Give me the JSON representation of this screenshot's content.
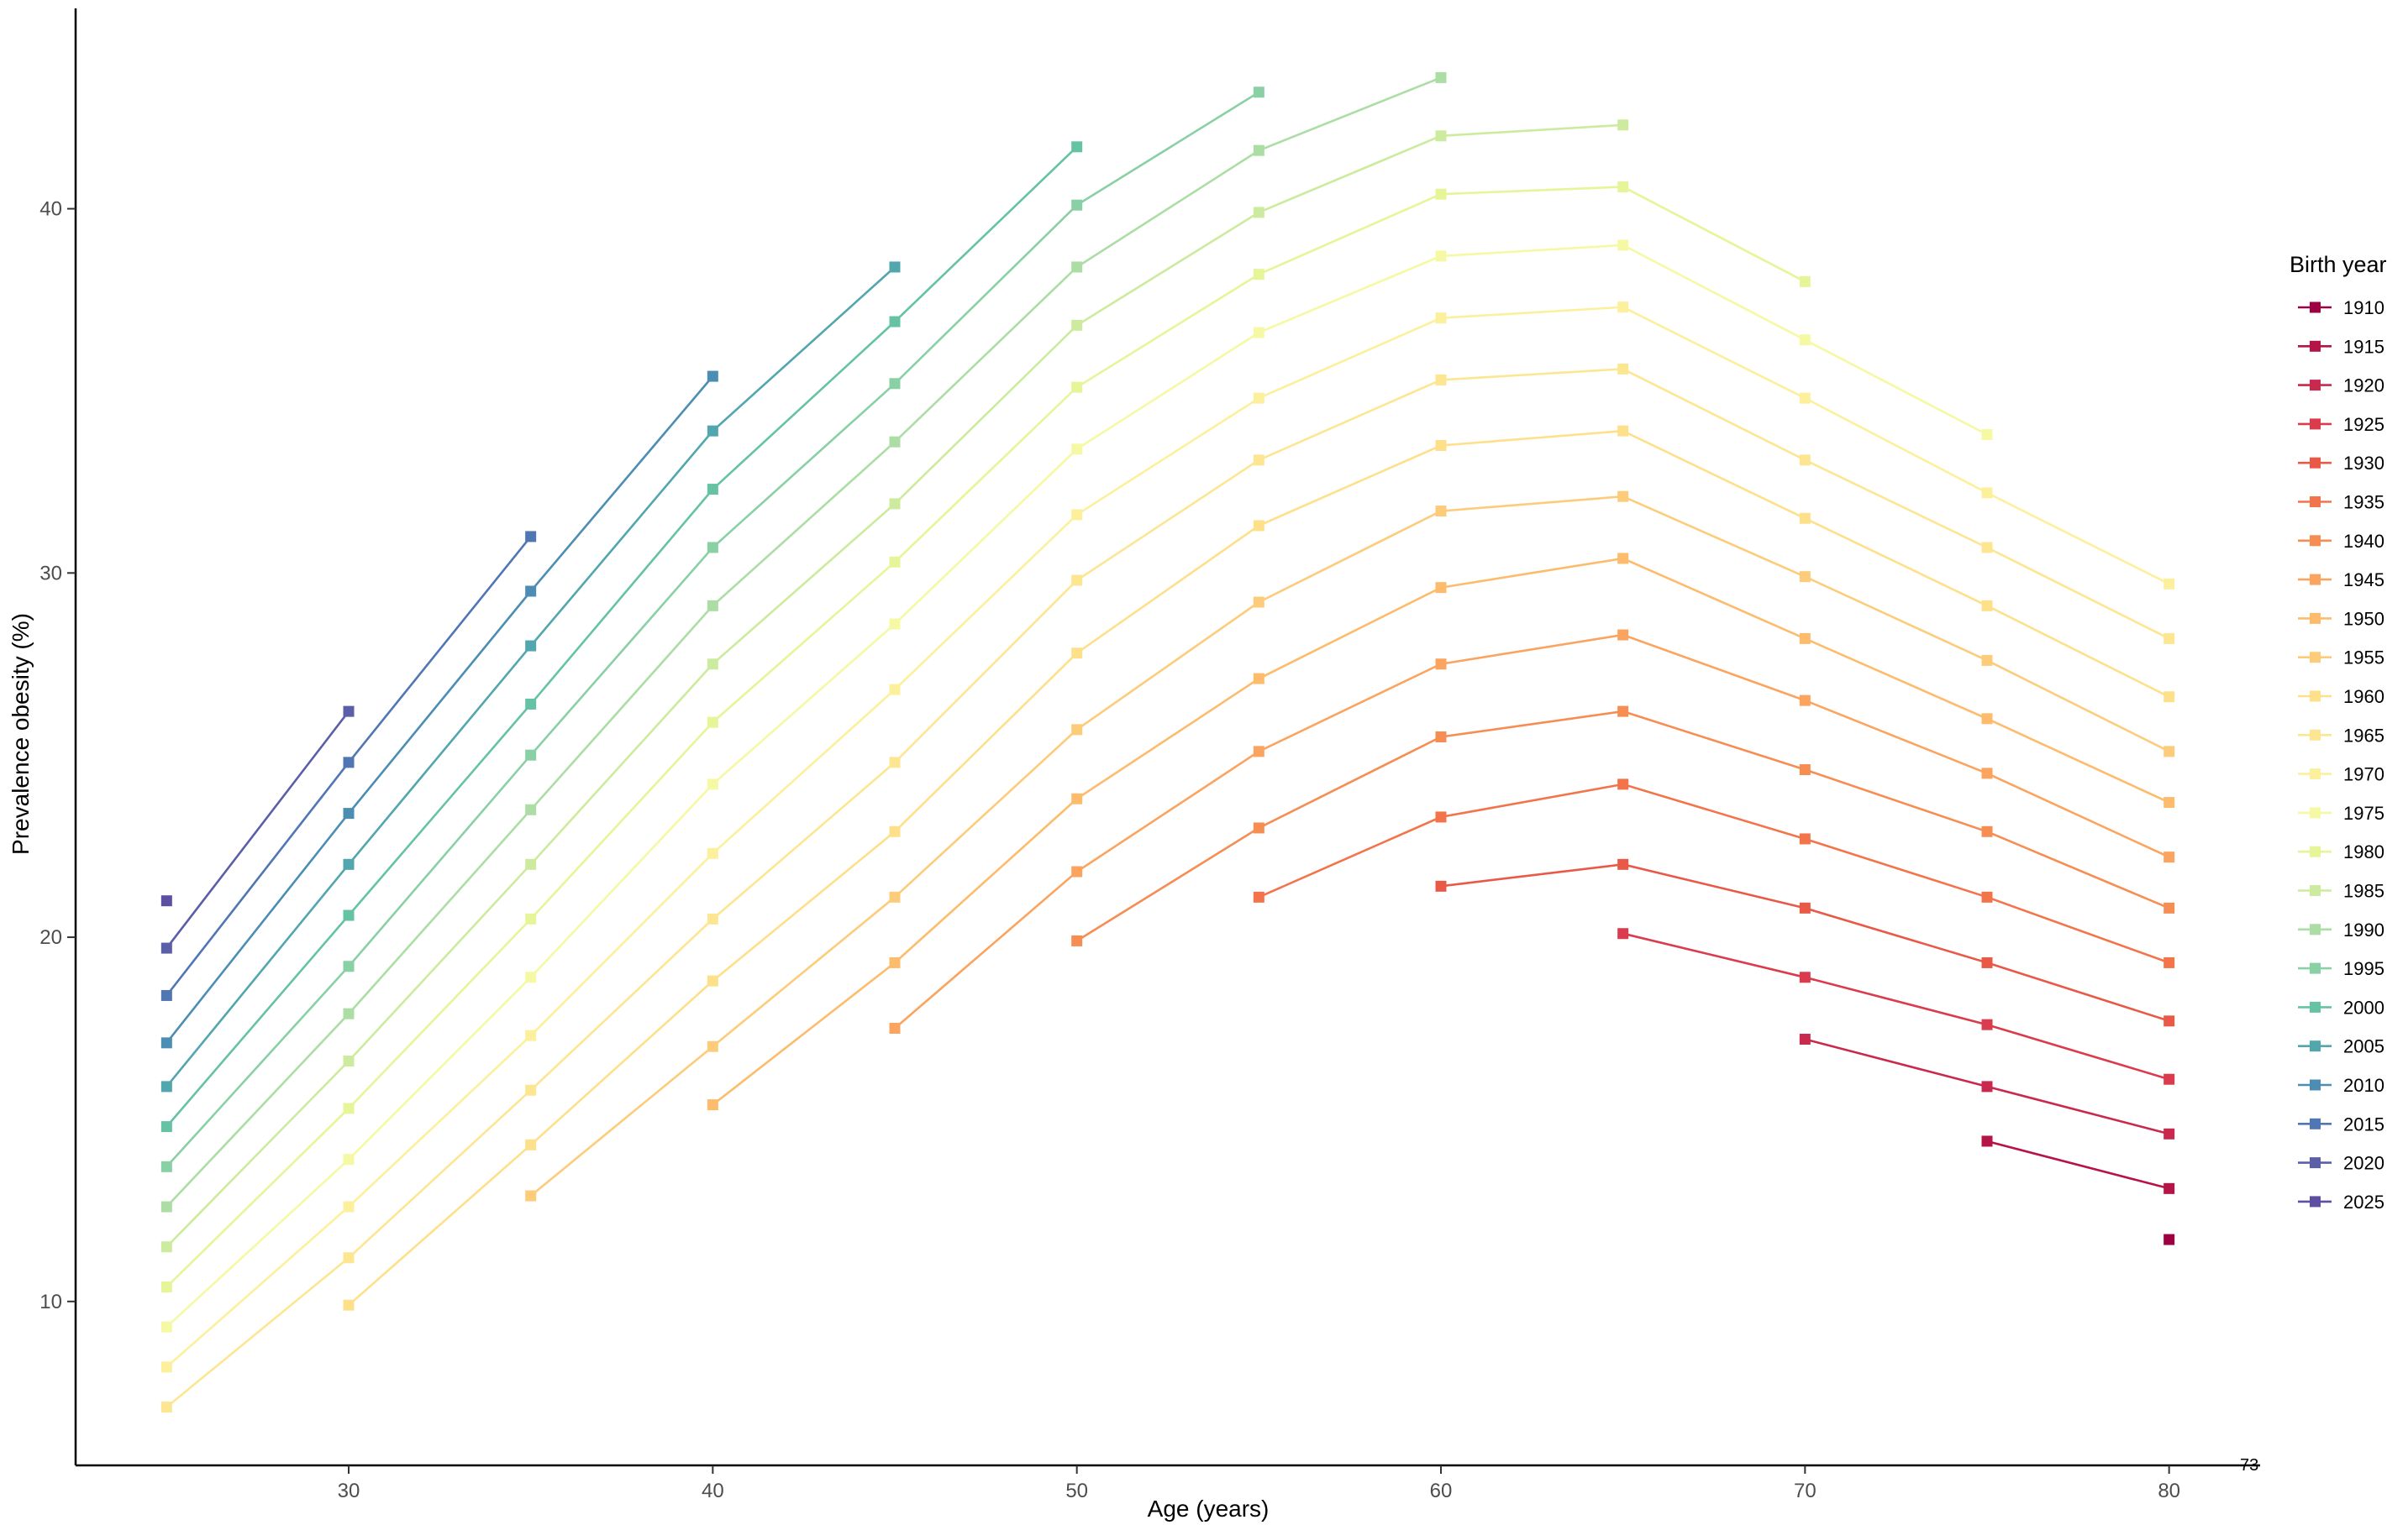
{
  "chart_data": {
    "type": "line",
    "title": "",
    "xlabel": "Age (years)",
    "ylabel": "Prevalence obesity (%)",
    "xlim": [
      22.5,
      82.5
    ],
    "ylim": [
      5.5,
      45.5
    ],
    "x_ticks": [
      30,
      40,
      50,
      60,
      70,
      80
    ],
    "y_ticks": [
      10,
      20,
      30,
      40
    ],
    "grid": false,
    "legend_title": "Birth year",
    "legend_position": "right",
    "corner_note": "73",
    "series": [
      {
        "name": "1910",
        "color": "#9e0142",
        "points": [
          [
            80,
            11.7
          ]
        ]
      },
      {
        "name": "1915",
        "color": "#b41546",
        "points": [
          [
            75,
            14.4
          ],
          [
            80,
            13.1
          ]
        ]
      },
      {
        "name": "1920",
        "color": "#c9294c",
        "points": [
          [
            70,
            17.2
          ],
          [
            75,
            15.9
          ],
          [
            80,
            14.6
          ]
        ]
      },
      {
        "name": "1925",
        "color": "#da3c4d",
        "points": [
          [
            65,
            20.1
          ],
          [
            70,
            18.9
          ],
          [
            75,
            17.6
          ],
          [
            80,
            16.1
          ]
        ]
      },
      {
        "name": "1930",
        "color": "#e85a47",
        "points": [
          [
            60,
            21.4
          ],
          [
            65,
            22.0
          ],
          [
            70,
            20.8
          ],
          [
            75,
            19.3
          ],
          [
            80,
            17.7
          ]
        ]
      },
      {
        "name": "1935",
        "color": "#f3744b",
        "points": [
          [
            55,
            21.1
          ],
          [
            60,
            23.3
          ],
          [
            65,
            24.2
          ],
          [
            70,
            22.7
          ],
          [
            75,
            21.1
          ],
          [
            80,
            19.3
          ]
        ]
      },
      {
        "name": "1940",
        "color": "#f68d53",
        "points": [
          [
            50,
            19.9
          ],
          [
            55,
            23.0
          ],
          [
            60,
            25.5
          ],
          [
            65,
            26.2
          ],
          [
            70,
            24.6
          ],
          [
            75,
            22.9
          ],
          [
            80,
            20.8
          ]
        ]
      },
      {
        "name": "1945",
        "color": "#fba45f",
        "points": [
          [
            45,
            17.5
          ],
          [
            50,
            21.8
          ],
          [
            55,
            25.1
          ],
          [
            60,
            27.5
          ],
          [
            65,
            28.3
          ],
          [
            70,
            26.5
          ],
          [
            75,
            24.5
          ],
          [
            80,
            22.2
          ]
        ]
      },
      {
        "name": "1950",
        "color": "#fdbb6c",
        "points": [
          [
            40,
            15.4
          ],
          [
            45,
            19.3
          ],
          [
            50,
            23.8
          ],
          [
            55,
            27.1
          ],
          [
            60,
            29.6
          ],
          [
            65,
            30.4
          ],
          [
            70,
            28.2
          ],
          [
            75,
            26.0
          ],
          [
            80,
            23.7
          ]
        ]
      },
      {
        "name": "1955",
        "color": "#fdcc7a",
        "points": [
          [
            35,
            12.9
          ],
          [
            40,
            17.0
          ],
          [
            45,
            21.1
          ],
          [
            50,
            25.7
          ],
          [
            55,
            29.2
          ],
          [
            60,
            31.7
          ],
          [
            65,
            32.1
          ],
          [
            70,
            29.9
          ],
          [
            75,
            27.6
          ],
          [
            80,
            25.1
          ]
        ]
      },
      {
        "name": "1960",
        "color": "#fee08b",
        "points": [
          [
            30,
            9.9
          ],
          [
            35,
            14.3
          ],
          [
            40,
            18.8
          ],
          [
            45,
            22.9
          ],
          [
            50,
            27.8
          ],
          [
            55,
            31.3
          ],
          [
            60,
            33.5
          ],
          [
            65,
            33.9
          ],
          [
            70,
            31.5
          ],
          [
            75,
            29.1
          ],
          [
            80,
            26.6
          ]
        ]
      },
      {
        "name": "1965",
        "color": "#fde692",
        "points": [
          [
            25,
            7.1
          ],
          [
            30,
            11.2
          ],
          [
            35,
            15.8
          ],
          [
            40,
            20.5
          ],
          [
            45,
            24.8
          ],
          [
            50,
            29.8
          ],
          [
            55,
            33.1
          ],
          [
            60,
            35.3
          ],
          [
            65,
            35.6
          ],
          [
            70,
            33.1
          ],
          [
            75,
            30.7
          ],
          [
            80,
            28.2
          ]
        ]
      },
      {
        "name": "1970",
        "color": "#fcf09c",
        "points": [
          [
            25,
            8.2
          ],
          [
            30,
            12.6
          ],
          [
            35,
            17.3
          ],
          [
            40,
            22.3
          ],
          [
            45,
            26.8
          ],
          [
            50,
            31.6
          ],
          [
            55,
            34.8
          ],
          [
            60,
            37.0
          ],
          [
            65,
            37.3
          ],
          [
            70,
            34.8
          ],
          [
            75,
            32.2
          ],
          [
            80,
            29.7
          ]
        ]
      },
      {
        "name": "1975",
        "color": "#f5f9a4",
        "points": [
          [
            25,
            9.3
          ],
          [
            30,
            13.9
          ],
          [
            35,
            18.9
          ],
          [
            40,
            24.2
          ],
          [
            45,
            28.6
          ],
          [
            50,
            33.4
          ],
          [
            55,
            36.6
          ],
          [
            60,
            38.7
          ],
          [
            65,
            39.0
          ],
          [
            70,
            36.4
          ],
          [
            75,
            33.8
          ]
        ]
      },
      {
        "name": "1980",
        "color": "#e6f598",
        "points": [
          [
            25,
            10.4
          ],
          [
            30,
            15.3
          ],
          [
            35,
            20.5
          ],
          [
            40,
            25.9
          ],
          [
            45,
            30.3
          ],
          [
            50,
            35.1
          ],
          [
            55,
            38.2
          ],
          [
            60,
            40.4
          ],
          [
            65,
            40.6
          ],
          [
            70,
            38.0
          ]
        ]
      },
      {
        "name": "1985",
        "color": "#cdeb9e",
        "points": [
          [
            25,
            11.5
          ],
          [
            30,
            16.6
          ],
          [
            35,
            22.0
          ],
          [
            40,
            27.5
          ],
          [
            45,
            31.9
          ],
          [
            50,
            36.8
          ],
          [
            55,
            39.9
          ],
          [
            60,
            42.0
          ],
          [
            65,
            42.3
          ]
        ]
      },
      {
        "name": "1990",
        "color": "#abdda4",
        "points": [
          [
            25,
            12.6
          ],
          [
            30,
            17.9
          ],
          [
            35,
            23.5
          ],
          [
            40,
            29.1
          ],
          [
            45,
            33.6
          ],
          [
            50,
            38.4
          ],
          [
            55,
            41.6
          ],
          [
            60,
            43.6
          ]
        ]
      },
      {
        "name": "1995",
        "color": "#89d0a4",
        "points": [
          [
            25,
            13.7
          ],
          [
            30,
            19.2
          ],
          [
            35,
            25.0
          ],
          [
            40,
            30.7
          ],
          [
            45,
            35.2
          ],
          [
            50,
            40.1
          ],
          [
            55,
            43.2
          ]
        ]
      },
      {
        "name": "2000",
        "color": "#66c2a5",
        "points": [
          [
            25,
            14.8
          ],
          [
            30,
            20.6
          ],
          [
            35,
            26.4
          ],
          [
            40,
            32.3
          ],
          [
            45,
            36.9
          ],
          [
            50,
            41.7
          ]
        ]
      },
      {
        "name": "2005",
        "color": "#52a6ad",
        "points": [
          [
            25,
            15.9
          ],
          [
            30,
            22.0
          ],
          [
            35,
            28.0
          ],
          [
            40,
            33.9
          ],
          [
            45,
            38.4
          ]
        ]
      },
      {
        "name": "2010",
        "color": "#4c8eb3",
        "points": [
          [
            25,
            17.1
          ],
          [
            30,
            23.4
          ],
          [
            35,
            29.5
          ],
          [
            40,
            35.4
          ]
        ]
      },
      {
        "name": "2015",
        "color": "#5076b3",
        "points": [
          [
            25,
            18.4
          ],
          [
            30,
            24.8
          ],
          [
            35,
            31.0
          ]
        ]
      },
      {
        "name": "2020",
        "color": "#5b5fa8",
        "points": [
          [
            25,
            19.7
          ],
          [
            30,
            26.2
          ]
        ]
      },
      {
        "name": "2025",
        "color": "#5e4fa2",
        "points": [
          [
            25,
            21.0
          ]
        ]
      }
    ]
  }
}
